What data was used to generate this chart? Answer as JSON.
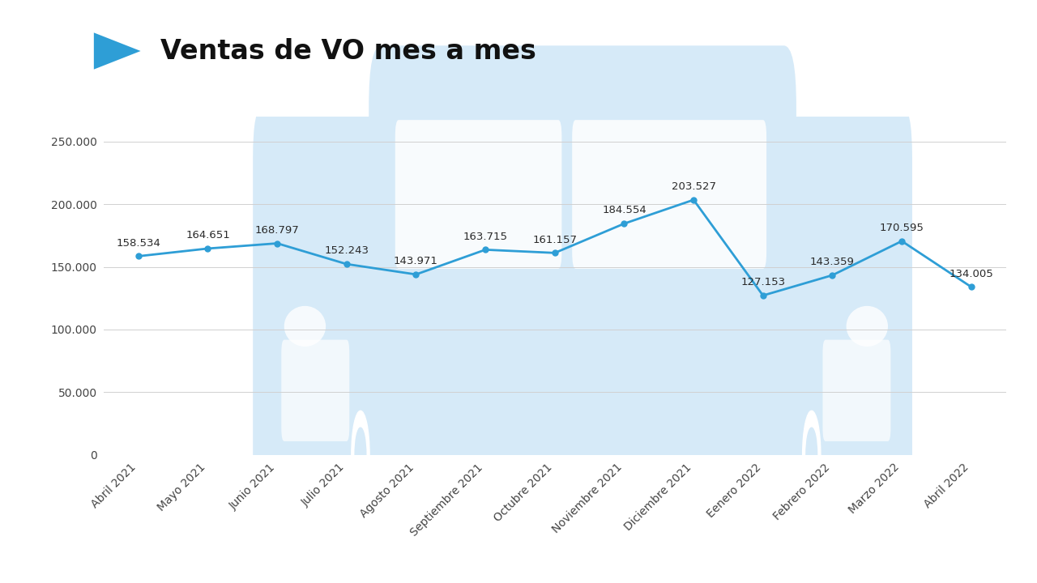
{
  "title": "Ventas de VO mes a mes",
  "categories": [
    "Abril 2021",
    "Mayo 2021",
    "Junio 2021",
    "Julio 2021",
    "Agosto 2021",
    "Septiembre 2021",
    "Octubre 2021",
    "Noviembre 2021",
    "Diciembre 2021",
    "Eenero 2022",
    "Febrero 2022",
    "Marzo 2022",
    "Abril 2022"
  ],
  "values": [
    158534,
    164651,
    168797,
    152243,
    143971,
    163715,
    161157,
    184554,
    203527,
    127153,
    143359,
    170595,
    134005
  ],
  "labels": [
    "158.534",
    "164.651",
    "168.797",
    "152.243",
    "143.971",
    "163.715",
    "161.157",
    "184.554",
    "203.527",
    "127.153",
    "143.359",
    "170.595",
    "134.005"
  ],
  "line_color": "#2E9ED6",
  "marker_color": "#2E9ED6",
  "bg_color": "#ffffff",
  "grid_color": "#d0d0d0",
  "car_color": "#d6eaf8",
  "ylim": [
    0,
    270000
  ],
  "yticks": [
    0,
    50000,
    100000,
    150000,
    200000,
    250000
  ],
  "ytick_labels": [
    "0",
    "50.000",
    "100.000",
    "150.000",
    "200.000",
    "250.000"
  ],
  "title_fontsize": 24,
  "label_fontsize": 9.5,
  "tick_fontsize": 10,
  "arrow_color": "#2E9ED6"
}
